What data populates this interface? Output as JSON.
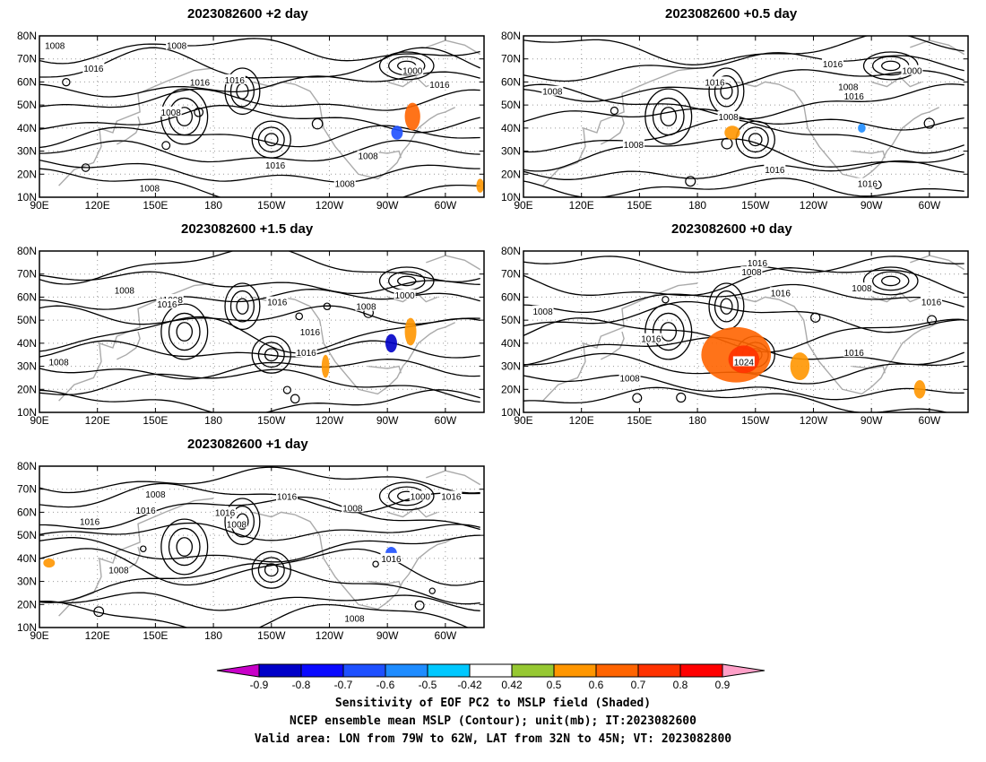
{
  "chart_data": {
    "type": "map",
    "panels": [
      {
        "title": "2023082600 +2 day",
        "labels": [
          {
            "text": "1008",
            "lon": 98,
            "lat": 76
          },
          {
            "text": "1008",
            "lon": 161,
            "lat": 76
          },
          {
            "text": "1016",
            "lon": 118,
            "lat": 66
          },
          {
            "text": "1016",
            "lon": 173,
            "lat": 60
          },
          {
            "text": "1016",
            "lon": 191,
            "lat": 61
          },
          {
            "text": "1008",
            "lon": 158,
            "lat": 47
          },
          {
            "text": "1000",
            "lon": 283,
            "lat": 65
          },
          {
            "text": "1016",
            "lon": 297,
            "lat": 59
          },
          {
            "text": "1008",
            "lon": 260,
            "lat": 28
          },
          {
            "text": "1008",
            "lon": 248,
            "lat": 16
          },
          {
            "text": "1016",
            "lon": 212,
            "lat": 24
          },
          {
            "text": "1008",
            "lon": 147,
            "lat": 14
          }
        ]
      },
      {
        "title": "2023082600 +0.5 day",
        "labels": [
          {
            "text": "1016",
            "lon": 250,
            "lat": 68
          },
          {
            "text": "1000",
            "lon": 291,
            "lat": 65
          },
          {
            "text": "1016",
            "lon": 189,
            "lat": 60
          },
          {
            "text": "1008",
            "lon": 105,
            "lat": 56
          },
          {
            "text": "1008",
            "lon": 258,
            "lat": 58
          },
          {
            "text": "1016",
            "lon": 261,
            "lat": 54
          },
          {
            "text": "1008",
            "lon": 196,
            "lat": 45
          },
          {
            "text": "1008",
            "lon": 147,
            "lat": 33
          },
          {
            "text": "1016",
            "lon": 220,
            "lat": 22
          },
          {
            "text": "1016",
            "lon": 268,
            "lat": 16
          }
        ]
      },
      {
        "title": "2023082600 +1.5 day",
        "labels": [
          {
            "text": "1008",
            "lon": 134,
            "lat": 63
          },
          {
            "text": "1008",
            "lon": 159,
            "lat": 59
          },
          {
            "text": "1016",
            "lon": 156,
            "lat": 57
          },
          {
            "text": "1016",
            "lon": 213,
            "lat": 58
          },
          {
            "text": "1000",
            "lon": 279,
            "lat": 61
          },
          {
            "text": "1008",
            "lon": 259,
            "lat": 56
          },
          {
            "text": "1016",
            "lon": 230,
            "lat": 45
          },
          {
            "text": "1008",
            "lon": 100,
            "lat": 32
          },
          {
            "text": "1016",
            "lon": 228,
            "lat": 36
          }
        ]
      },
      {
        "title": "2023082600 +0 day",
        "labels": [
          {
            "text": "1016",
            "lon": 211,
            "lat": 75
          },
          {
            "text": "1008",
            "lon": 208,
            "lat": 71
          },
          {
            "text": "1016",
            "lon": 223,
            "lat": 62
          },
          {
            "text": "1008",
            "lon": 265,
            "lat": 64
          },
          {
            "text": "1016",
            "lon": 301,
            "lat": 58
          },
          {
            "text": "1008",
            "lon": 100,
            "lat": 54
          },
          {
            "text": "1016",
            "lon": 156,
            "lat": 42
          },
          {
            "text": "1024",
            "lon": 204,
            "lat": 32
          },
          {
            "text": "1016",
            "lon": 261,
            "lat": 36
          },
          {
            "text": "1008",
            "lon": 145,
            "lat": 25
          }
        ]
      },
      {
        "title": "2023082600 +1 day",
        "labels": [
          {
            "text": "1008",
            "lon": 150,
            "lat": 68
          },
          {
            "text": "1016",
            "lon": 218,
            "lat": 67
          },
          {
            "text": "1000",
            "lon": 287,
            "lat": 67
          },
          {
            "text": "1016",
            "lon": 303,
            "lat": 67
          },
          {
            "text": "1016",
            "lon": 145,
            "lat": 61
          },
          {
            "text": "1016",
            "lon": 186,
            "lat": 60
          },
          {
            "text": "1008",
            "lon": 252,
            "lat": 62
          },
          {
            "text": "1016",
            "lon": 116,
            "lat": 56
          },
          {
            "text": "1008",
            "lon": 192,
            "lat": 55
          },
          {
            "text": "1008",
            "lon": 131,
            "lat": 35
          },
          {
            "text": "1016",
            "lon": 272,
            "lat": 40
          },
          {
            "text": "1008",
            "lon": 253,
            "lat": 14
          }
        ]
      }
    ],
    "x_ticks": [
      {
        "lon": 90,
        "label": "90E"
      },
      {
        "lon": 120,
        "label": "120E"
      },
      {
        "lon": 150,
        "label": "150E"
      },
      {
        "lon": 180,
        "label": "180"
      },
      {
        "lon": 210,
        "label": "150W"
      },
      {
        "lon": 240,
        "label": "120W"
      },
      {
        "lon": 270,
        "label": "90W"
      },
      {
        "lon": 300,
        "label": "60W"
      }
    ],
    "y_ticks": [
      {
        "lat": 10,
        "label": "10N"
      },
      {
        "lat": 20,
        "label": "20N"
      },
      {
        "lat": 30,
        "label": "30N"
      },
      {
        "lat": 40,
        "label": "40N"
      },
      {
        "lat": 50,
        "label": "50N"
      },
      {
        "lat": 60,
        "label": "60N"
      },
      {
        "lat": 70,
        "label": "70N"
      },
      {
        "lat": 80,
        "label": "80N"
      }
    ],
    "lon_range": [
      90,
      320
    ],
    "lat_range": [
      10,
      80
    ],
    "colorbar": {
      "tick_labels": [
        "-0.9",
        "-0.8",
        "-0.7",
        "-0.6",
        "-0.5",
        "-0.42",
        "0.42",
        "0.5",
        "0.6",
        "0.7",
        "0.8",
        "0.9"
      ],
      "colors": [
        "#c800c8",
        "#0000c8",
        "#0a0aff",
        "#1e50ff",
        "#1e8cff",
        "#00c8ff",
        "#ffffff",
        "#96c832",
        "#ff9600",
        "#ff6400",
        "#ff3200",
        "#ff0000",
        "#ffa0c8"
      ]
    },
    "captions": [
      "Sensitivity of EOF PC2 to MSLP field (Shaded)",
      "NCEP ensemble mean MSLP (Contour); unit(mb); IT:2023082600",
      "Valid area: LON from 79W to 62W, LAT from 32N to 45N; VT: 2023082800"
    ]
  }
}
